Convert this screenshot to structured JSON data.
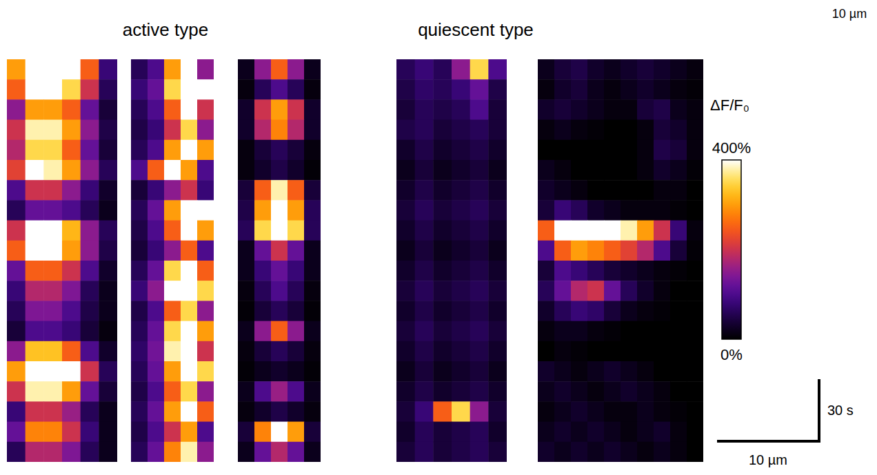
{
  "chart_data": [
    {
      "type": "heatmap",
      "title": "active type",
      "panels": [
        {
          "cells": [
            [
              300,
              400,
              400,
              400,
              250,
              80
            ],
            [
              250,
              400,
              400,
              350,
              200,
              60
            ],
            [
              150,
              300,
              300,
              250,
              120,
              40
            ],
            [
              200,
              380,
              380,
              300,
              150,
              50
            ],
            [
              180,
              350,
              350,
              250,
              120,
              40
            ],
            [
              220,
              400,
              380,
              300,
              150,
              60
            ],
            [
              100,
              200,
              200,
              150,
              80,
              30
            ],
            [
              60,
              120,
              120,
              100,
              60,
              20
            ],
            [
              200,
              400,
              400,
              320,
              150,
              60
            ],
            [
              250,
              400,
              400,
              300,
              150,
              50
            ],
            [
              120,
              250,
              250,
              200,
              100,
              30
            ],
            [
              80,
              180,
              180,
              140,
              60,
              20
            ],
            [
              60,
              140,
              140,
              100,
              50,
              20
            ],
            [
              40,
              100,
              100,
              80,
              40,
              10
            ],
            [
              150,
              330,
              330,
              250,
              100,
              30
            ],
            [
              300,
              400,
              400,
              400,
              200,
              60
            ],
            [
              200,
              380,
              380,
              300,
              120,
              40
            ],
            [
              80,
              200,
              200,
              160,
              60,
              20
            ],
            [
              120,
              280,
              280,
              200,
              80,
              20
            ],
            [
              60,
              180,
              180,
              140,
              60,
              20
            ]
          ]
        },
        {
          "cells": [
            [
              60,
              100,
              300,
              400,
              150
            ],
            [
              80,
              120,
              350,
              400,
              400
            ],
            [
              60,
              100,
              250,
              400,
              200
            ],
            [
              50,
              80,
              200,
              350,
              150
            ],
            [
              60,
              100,
              300,
              400,
              300
            ],
            [
              100,
              250,
              400,
              300,
              100
            ],
            [
              40,
              80,
              150,
              200,
              80
            ],
            [
              60,
              120,
              300,
              400,
              400
            ],
            [
              50,
              100,
              250,
              400,
              300
            ],
            [
              40,
              80,
              150,
              250,
              100
            ],
            [
              60,
              120,
              350,
              400,
              250
            ],
            [
              80,
              150,
              400,
              400,
              350
            ],
            [
              50,
              100,
              250,
              350,
              150
            ],
            [
              60,
              120,
              350,
              400,
              300
            ],
            [
              70,
              130,
              380,
              400,
              200
            ],
            [
              60,
              120,
              300,
              400,
              350
            ],
            [
              50,
              100,
              250,
              350,
              150
            ],
            [
              60,
              120,
              300,
              400,
              250
            ],
            [
              50,
              100,
              200,
              300,
              100
            ],
            [
              60,
              120,
              280,
              380,
              150
            ]
          ]
        },
        {
          "cells": [
            [
              20,
              150,
              250,
              150,
              20
            ],
            [
              10,
              60,
              100,
              60,
              10
            ],
            [
              30,
              200,
              300,
              200,
              30
            ],
            [
              30,
              180,
              280,
              180,
              30
            ],
            [
              10,
              40,
              60,
              40,
              10
            ],
            [
              10,
              30,
              50,
              30,
              5
            ],
            [
              40,
              250,
              380,
              250,
              40
            ],
            [
              50,
              300,
              400,
              300,
              60
            ],
            [
              60,
              350,
              400,
              350,
              60
            ],
            [
              20,
              120,
              200,
              120,
              20
            ],
            [
              20,
              80,
              120,
              80,
              20
            ],
            [
              10,
              60,
              100,
              60,
              10
            ],
            [
              5,
              40,
              60,
              40,
              5
            ],
            [
              20,
              150,
              250,
              150,
              20
            ],
            [
              10,
              40,
              60,
              40,
              10
            ],
            [
              5,
              20,
              30,
              20,
              5
            ],
            [
              20,
              100,
              160,
              100,
              20
            ],
            [
              10,
              30,
              50,
              30,
              10
            ],
            [
              40,
              280,
              400,
              300,
              40
            ],
            [
              20,
              120,
              180,
              120,
              20
            ]
          ]
        }
      ]
    },
    {
      "type": "heatmap",
      "title": "quiescent type",
      "panels": [
        {
          "cells": [
            [
              60,
              80,
              60,
              150,
              350,
              100
            ],
            [
              50,
              70,
              60,
              80,
              120,
              50
            ],
            [
              40,
              60,
              50,
              60,
              100,
              40
            ],
            [
              50,
              60,
              40,
              50,
              60,
              40
            ],
            [
              30,
              50,
              30,
              40,
              50,
              30
            ],
            [
              20,
              40,
              20,
              30,
              40,
              20
            ],
            [
              30,
              50,
              30,
              40,
              50,
              30
            ],
            [
              40,
              60,
              40,
              50,
              60,
              40
            ],
            [
              30,
              50,
              30,
              40,
              50,
              30
            ],
            [
              20,
              40,
              20,
              30,
              40,
              20
            ],
            [
              30,
              50,
              30,
              40,
              50,
              30
            ],
            [
              40,
              60,
              40,
              50,
              60,
              40
            ],
            [
              30,
              50,
              30,
              40,
              50,
              30
            ],
            [
              40,
              60,
              40,
              50,
              60,
              40
            ],
            [
              30,
              50,
              30,
              40,
              50,
              30
            ],
            [
              20,
              40,
              20,
              30,
              40,
              20
            ],
            [
              30,
              50,
              30,
              40,
              50,
              30
            ],
            [
              40,
              80,
              250,
              350,
              150,
              40
            ],
            [
              30,
              60,
              40,
              50,
              60,
              30
            ],
            [
              40,
              60,
              40,
              50,
              60,
              40
            ]
          ]
        },
        {
          "cells": [
            [
              20,
              40,
              50,
              30,
              20,
              30,
              40,
              30,
              20,
              10
            ],
            [
              10,
              30,
              40,
              20,
              10,
              20,
              30,
              20,
              10,
              5
            ],
            [
              30,
              40,
              30,
              20,
              10,
              10,
              40,
              50,
              20,
              10
            ],
            [
              10,
              20,
              10,
              5,
              0,
              0,
              10,
              40,
              30,
              10
            ],
            [
              0,
              0,
              0,
              0,
              0,
              0,
              10,
              50,
              40,
              10
            ],
            [
              20,
              10,
              0,
              0,
              0,
              0,
              10,
              30,
              20,
              5
            ],
            [
              30,
              20,
              10,
              0,
              0,
              0,
              0,
              10,
              10,
              0
            ],
            [
              40,
              80,
              60,
              30,
              20,
              10,
              10,
              10,
              5,
              0
            ],
            [
              250,
              400,
              400,
              400,
              400,
              380,
              300,
              200,
              80,
              10
            ],
            [
              100,
              250,
              300,
              280,
              250,
              220,
              180,
              100,
              40,
              5
            ],
            [
              40,
              100,
              80,
              60,
              40,
              30,
              20,
              10,
              5,
              0
            ],
            [
              60,
              120,
              180,
              200,
              120,
              60,
              30,
              10,
              0,
              0
            ],
            [
              30,
              60,
              80,
              70,
              40,
              20,
              10,
              5,
              0,
              0
            ],
            [
              10,
              20,
              20,
              10,
              5,
              0,
              0,
              0,
              0,
              0
            ],
            [
              0,
              10,
              5,
              0,
              0,
              0,
              0,
              0,
              0,
              0
            ],
            [
              30,
              20,
              10,
              20,
              30,
              20,
              10,
              0,
              0,
              0
            ],
            [
              20,
              30,
              20,
              10,
              20,
              30,
              20,
              10,
              0,
              0
            ],
            [
              10,
              20,
              30,
              20,
              10,
              10,
              20,
              10,
              5,
              0
            ],
            [
              20,
              30,
              20,
              30,
              20,
              10,
              20,
              30,
              10,
              0
            ],
            [
              30,
              20,
              30,
              20,
              30,
              20,
              10,
              20,
              10,
              0
            ]
          ]
        }
      ]
    }
  ],
  "colorbar": {
    "title": "ΔF/F₀",
    "range": [
      0,
      400
    ],
    "ticks": [
      {
        "value": 0,
        "label": "0%"
      },
      {
        "value": 400,
        "label": "400%"
      }
    ]
  },
  "scale_bar": {
    "x_label": "10 µm",
    "y_label": "30 s"
  },
  "corner_label": "10 µm"
}
